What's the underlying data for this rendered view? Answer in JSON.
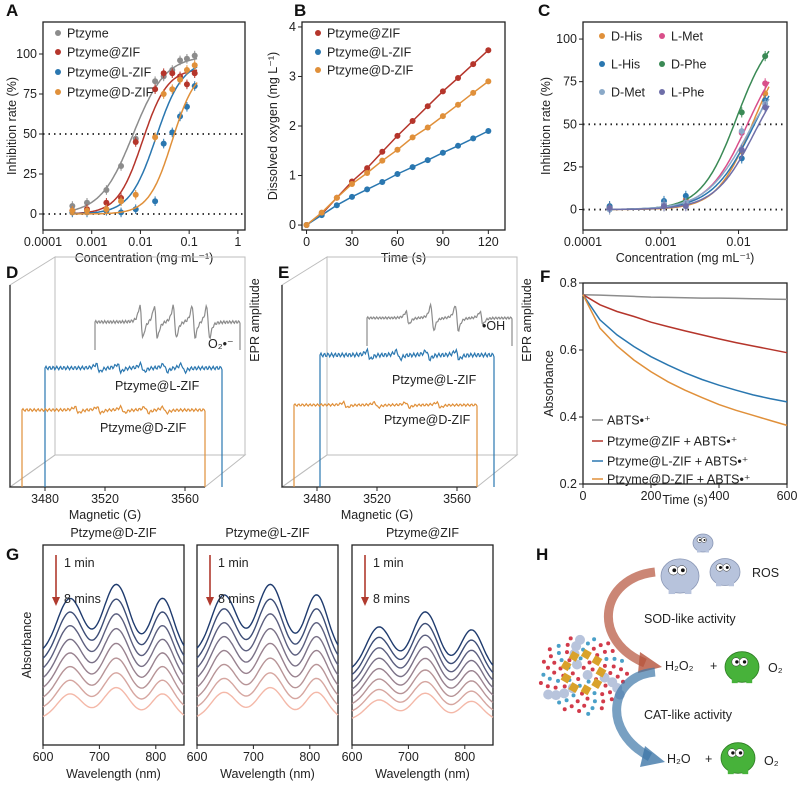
{
  "panel_labels": [
    "A",
    "B",
    "C",
    "D",
    "E",
    "F",
    "G",
    "H"
  ],
  "chart_data": [
    {
      "id": "A",
      "type": "scatter",
      "xlabel": "Concentration (mg mL⁻¹)",
      "ylabel": "Inhibition rate (%)",
      "xscale": "log",
      "xlim": [
        0.0001,
        1.4
      ],
      "ylim": [
        -10,
        120
      ],
      "xticks": [
        "0.0001",
        "0.001",
        "0.01",
        "0.1",
        "1"
      ],
      "yticks": [
        "0",
        "25",
        "50",
        "75",
        "100"
      ],
      "reference_lines_y": [
        0,
        50
      ],
      "legend": "top-left",
      "x": [
        0.0004,
        0.0008,
        0.002,
        0.004,
        0.008,
        0.02,
        0.03,
        0.045,
        0.065,
        0.09,
        0.13
      ],
      "series": [
        {
          "name": "Ptzyme",
          "color": "#8c8c8c",
          "values": [
            5,
            7,
            15,
            30,
            47,
            83,
            86,
            90,
            96,
            97,
            99
          ]
        },
        {
          "name": "Ptzyme@ZIF",
          "color": "#b5352b",
          "values": [
            2,
            3,
            7,
            10,
            45,
            78,
            88,
            88,
            86,
            81,
            88
          ]
        },
        {
          "name": "Ptzyme@L-ZIF",
          "color": "#2a77b0",
          "values": [
            1,
            1,
            2,
            1,
            3,
            8,
            44,
            51,
            61,
            67,
            80
          ]
        },
        {
          "name": "Ptzyme@D-ZIF",
          "color": "#e0903a",
          "values": [
            2,
            2,
            3,
            8,
            12,
            48,
            75,
            78,
            84,
            90,
            93
          ]
        }
      ]
    },
    {
      "id": "B",
      "type": "line",
      "xlabel": "Time (s)",
      "ylabel": "Dissolved oxygen (mg L⁻¹)",
      "xlim": [
        -3,
        131
      ],
      "ylim": [
        -0.1,
        4.1
      ],
      "xticks": [
        "0",
        "30",
        "60",
        "90",
        "120"
      ],
      "yticks": [
        "0",
        "1",
        "2",
        "3",
        "4"
      ],
      "legend": "top-left",
      "x": [
        0,
        10,
        20,
        30,
        40,
        50,
        60,
        70,
        80,
        90,
        100,
        110,
        120
      ],
      "series": [
        {
          "name": "Ptzyme@ZIF",
          "color": "#b5352b",
          "values": [
            0,
            0.22,
            0.55,
            0.88,
            1.15,
            1.48,
            1.8,
            2.1,
            2.4,
            2.7,
            2.97,
            3.25,
            3.53
          ]
        },
        {
          "name": "Ptzyme@L-ZIF",
          "color": "#2a77b0",
          "values": [
            0,
            0.2,
            0.4,
            0.57,
            0.72,
            0.87,
            1.03,
            1.17,
            1.31,
            1.46,
            1.6,
            1.75,
            1.9
          ]
        },
        {
          "name": "Ptzyme@D-ZIF",
          "color": "#e0903a",
          "values": [
            0,
            0.25,
            0.55,
            0.83,
            1.05,
            1.3,
            1.52,
            1.77,
            1.97,
            2.2,
            2.43,
            2.67,
            2.9
          ]
        }
      ]
    },
    {
      "id": "C",
      "type": "scatter",
      "xlabel": "Concentration (mg mL⁻¹)",
      "ylabel": "Inhibition rate (%)",
      "xscale": "log",
      "xlim": [
        0.0001,
        0.042
      ],
      "ylim": [
        -12,
        110
      ],
      "xticks": [
        "0.0001",
        "0.001",
        "0.01"
      ],
      "yticks": [
        "0",
        "25",
        "50",
        "75",
        "100"
      ],
      "reference_lines_y": [
        0,
        50
      ],
      "legend": "top-left",
      "x": [
        0.00022,
        0.0011,
        0.0021,
        0.011,
        0.022
      ],
      "series": [
        {
          "name": "D-His",
          "color": "#e0903a",
          "values": [
            1,
            3,
            6,
            34,
            68
          ]
        },
        {
          "name": "L-Met",
          "color": "#d94f8a",
          "values": [
            1,
            3,
            5,
            45,
            74
          ]
        },
        {
          "name": "L-His",
          "color": "#2a77b0",
          "values": [
            2,
            5,
            8,
            30,
            64
          ]
        },
        {
          "name": "D-Phe",
          "color": "#3a8a55",
          "values": [
            1,
            2,
            3,
            57,
            90
          ]
        },
        {
          "name": "D-Met",
          "color": "#8aa9c8",
          "values": [
            0,
            3,
            4,
            46,
            62
          ]
        },
        {
          "name": "L-Phe",
          "color": "#6e6ea8",
          "values": [
            1,
            2,
            2,
            35,
            60
          ]
        }
      ]
    },
    {
      "id": "D",
      "type": "line",
      "style": "3d-waterfall",
      "xlabel": "Magnetic (G)",
      "zlabel": "EPR amplitude",
      "xticks": [
        "3480",
        "3520",
        "3560"
      ],
      "traces": [
        {
          "label": "O₂•⁻",
          "color": "#8c8c8c"
        },
        {
          "label": "Ptzyme@L-ZIF",
          "color": "#2a77b0"
        },
        {
          "label": "Ptzyme@D-ZIF",
          "color": "#e0903a"
        }
      ]
    },
    {
      "id": "E",
      "type": "line",
      "style": "3d-waterfall",
      "xlabel": "Magnetic (G)",
      "zlabel": "EPR amplitude",
      "xticks": [
        "3480",
        "3520",
        "3560"
      ],
      "traces": [
        {
          "label": "•OH",
          "color": "#8c8c8c"
        },
        {
          "label": "Ptzyme@L-ZIF",
          "color": "#2a77b0"
        },
        {
          "label": "Ptzyme@D-ZIF",
          "color": "#e0903a"
        }
      ]
    },
    {
      "id": "F",
      "type": "line",
      "xlabel": "Time (s)",
      "ylabel": "Absorbance",
      "xlim": [
        0,
        600
      ],
      "ylim": [
        0.2,
        0.8
      ],
      "xticks": [
        "0",
        "200",
        "400",
        "600"
      ],
      "yticks": [
        "0.2",
        "0.4",
        "0.6",
        "0.8"
      ],
      "legend": "bottom-left",
      "x": [
        0,
        50,
        100,
        150,
        200,
        250,
        300,
        350,
        400,
        450,
        500,
        550,
        600
      ],
      "series": [
        {
          "name": "ABTS•⁺",
          "color": "#8c8c8c",
          "values": [
            0.765,
            0.764,
            0.762,
            0.76,
            0.758,
            0.757,
            0.756,
            0.755,
            0.755,
            0.754,
            0.753,
            0.752,
            0.751
          ]
        },
        {
          "name": "Ptzyme@ZIF + ABTS•⁺",
          "color": "#b5352b",
          "values": [
            0.765,
            0.735,
            0.715,
            0.7,
            0.683,
            0.67,
            0.657,
            0.645,
            0.633,
            0.622,
            0.612,
            0.602,
            0.592
          ]
        },
        {
          "name": "Ptzyme@L-ZIF + ABTS•⁺",
          "color": "#2a77b0",
          "values": [
            0.765,
            0.69,
            0.645,
            0.61,
            0.58,
            0.555,
            0.532,
            0.512,
            0.495,
            0.48,
            0.466,
            0.455,
            0.445
          ]
        },
        {
          "name": "Ptzyme@D-ZIF + ABTS•⁺",
          "color": "#e0903a",
          "values": [
            0.765,
            0.665,
            0.612,
            0.57,
            0.535,
            0.505,
            0.48,
            0.458,
            0.437,
            0.42,
            0.405,
            0.39,
            0.375
          ]
        }
      ]
    },
    {
      "id": "G",
      "type": "line",
      "xlabel": "Wavelength (nm)",
      "ylabel": "Absorbance",
      "xlim": [
        600,
        850
      ],
      "xticks": [
        "600",
        "700",
        "800"
      ],
      "curve_count": 8,
      "color_start": "#1f3b6e",
      "color_end": "#f4b8a8",
      "arrow_start_label": "1 min",
      "arrow_end_label": "8 mins",
      "arrow_color": "#b03a2e",
      "subplots": [
        {
          "title": "Ptzyme@D-ZIF"
        },
        {
          "title": "Ptzyme@L-ZIF"
        },
        {
          "title": "Ptzyme@ZIF"
        }
      ]
    }
  ],
  "scheme_H": {
    "ros_label": "ROS",
    "sod_label": "SOD-like activity",
    "sod_color": "#b5523b",
    "cat_label": "CAT-like activity",
    "cat_color": "#3f77a8",
    "product1": "H₂O₂",
    "plus1": "+",
    "o2_1": "O₂",
    "product2": "H₂O",
    "plus2": "+",
    "o2_2": "O₂",
    "o2_color": "#2ea33a"
  }
}
